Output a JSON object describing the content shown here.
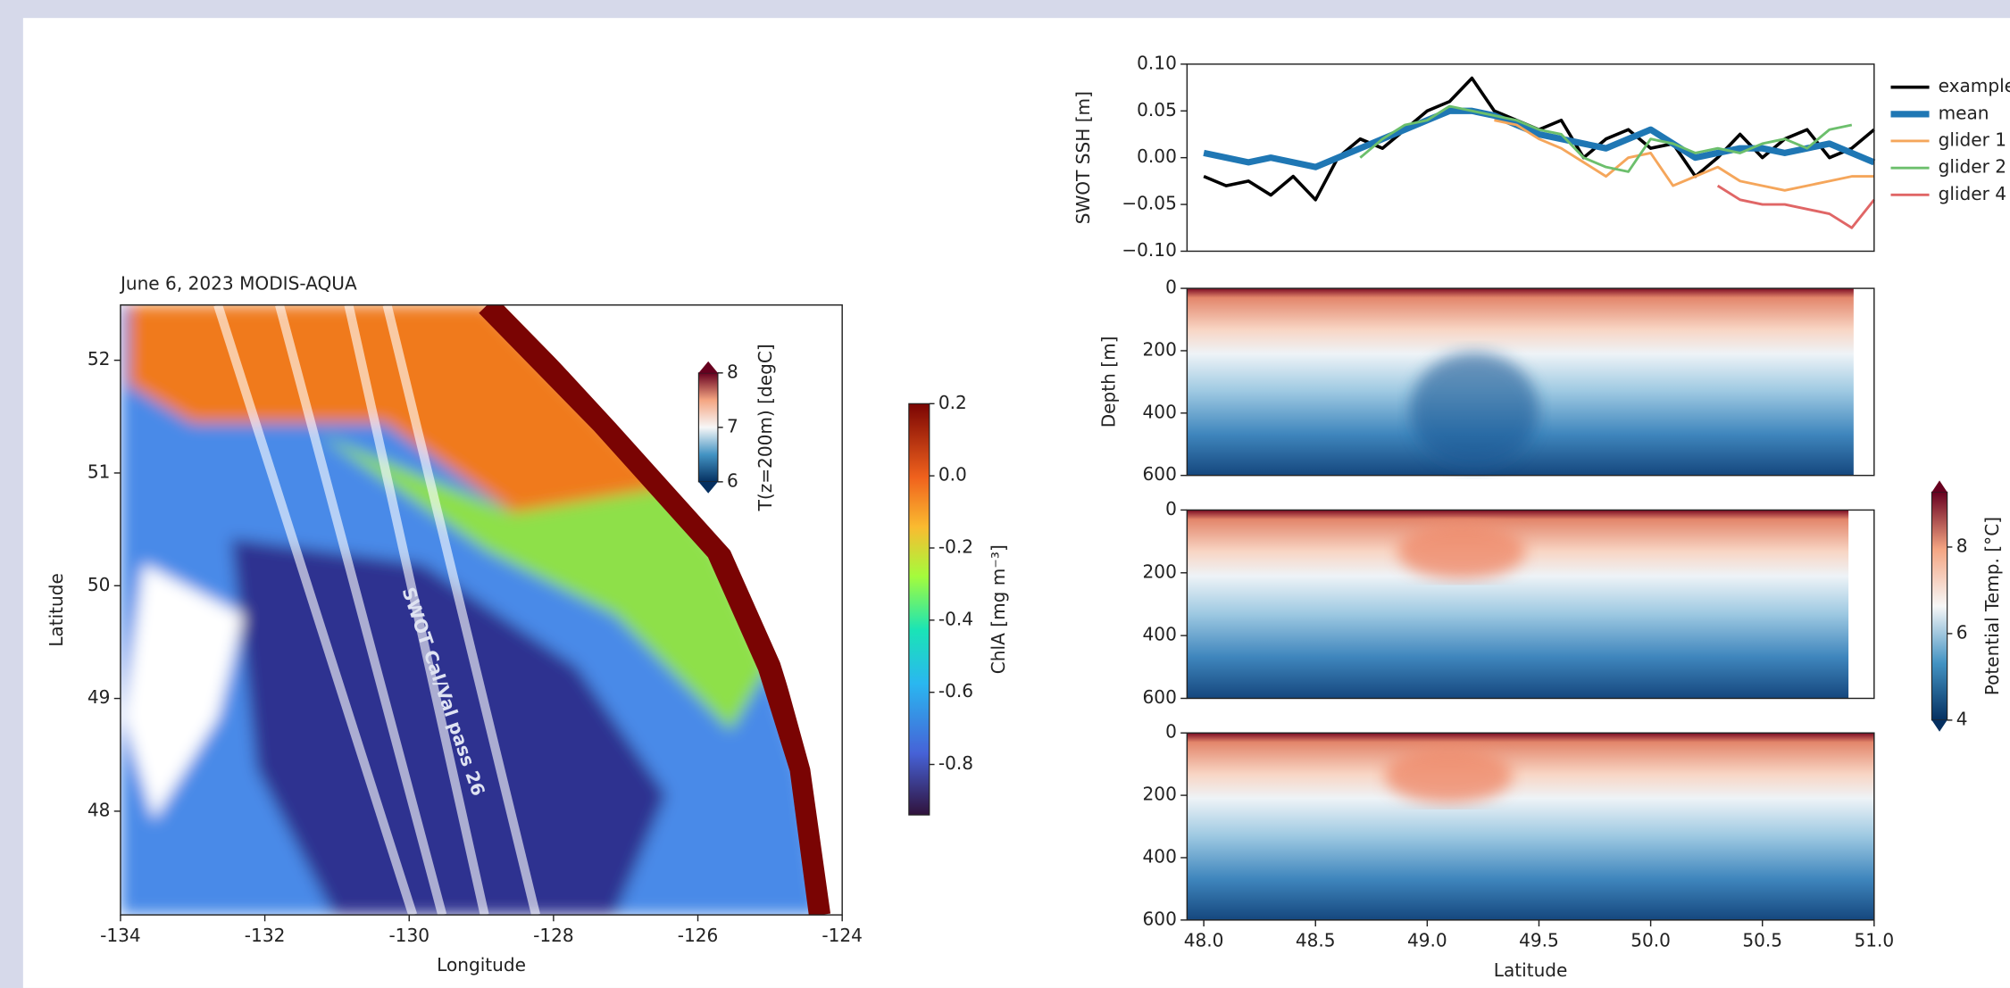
{
  "chart_data": [
    {
      "type": "map",
      "title": "June 6, 2023 MODIS-AQUA",
      "xlabel": "Longitude",
      "ylabel": "Latitude",
      "xlim": [
        -134,
        -124
      ],
      "xticks": [
        -134,
        -132,
        -130,
        -128,
        -126,
        -124
      ],
      "ylim": [
        47.08,
        52.49
      ],
      "yticks": [
        48,
        49,
        50,
        51,
        52
      ],
      "annotation": "SWOT Cal/Val pass 26",
      "colorbars": [
        {
          "label": "ChlA [mg m⁻³]",
          "lim": [
            -0.94,
            0.2
          ],
          "ticks": [
            0.2,
            {
              "value": 0,
              "label": "0.0"
            },
            -0.2,
            -0.4,
            -0.6,
            -0.8
          ]
        },
        {
          "label": "T(z=200m) [degC]",
          "lim": [
            6,
            8
          ],
          "ticks": [
            6,
            7,
            8
          ]
        }
      ]
    },
    {
      "type": "line",
      "ylabel": "SWOT SSH [m]",
      "ylim": [
        -0.1,
        0.1
      ],
      "yticks": [
        {
          "value": -0.1,
          "label": "−0.10"
        },
        {
          "value": -0.05,
          "label": "−0.05"
        },
        {
          "value": 0,
          "label": "0.00"
        },
        {
          "value": 0.05,
          "label": "0.05"
        },
        {
          "value": 0.1,
          "label": "0.10"
        }
      ],
      "xlim": [
        47.925,
        51.0
      ],
      "legend": "outside right",
      "x": [
        48.0,
        48.1,
        48.2,
        48.3,
        48.4,
        48.5,
        48.6,
        48.7,
        48.8,
        48.9,
        49.0,
        49.1,
        49.2,
        49.3,
        49.4,
        49.5,
        49.6,
        49.7,
        49.8,
        49.9,
        50.0,
        50.1,
        50.2,
        50.3,
        50.4,
        50.5,
        50.6,
        50.7,
        50.8,
        50.9,
        51.0
      ],
      "series": [
        {
          "name": "example",
          "color": "#000000",
          "width": 2.5,
          "values": [
            -0.02,
            -0.03,
            -0.025,
            -0.04,
            -0.02,
            -0.045,
            0.0,
            0.02,
            0.01,
            0.03,
            0.05,
            0.06,
            0.085,
            0.05,
            0.04,
            0.03,
            0.04,
            0.0,
            0.02,
            0.03,
            0.01,
            0.015,
            -0.02,
            0.0,
            0.025,
            0.0,
            0.02,
            0.03,
            0.0,
            0.01,
            0.03
          ]
        },
        {
          "name": "mean",
          "color": "#1f77b4",
          "width": 5,
          "values": [
            0.005,
            0.0,
            -0.005,
            0.0,
            -0.005,
            -0.01,
            0.0,
            0.01,
            0.02,
            0.03,
            0.04,
            0.05,
            0.05,
            0.045,
            0.035,
            0.025,
            0.02,
            0.015,
            0.01,
            0.02,
            0.03,
            0.015,
            0.0,
            0.005,
            0.01,
            0.01,
            0.005,
            0.01,
            0.015,
            0.005,
            -0.005
          ]
        },
        {
          "name": "glider 1",
          "color": "#f5a65b",
          "width": 2,
          "values": [
            null,
            null,
            null,
            null,
            null,
            null,
            null,
            null,
            null,
            null,
            null,
            null,
            null,
            0.04,
            0.035,
            0.02,
            0.01,
            -0.005,
            -0.02,
            0.0,
            0.005,
            -0.03,
            -0.02,
            -0.01,
            -0.025,
            -0.03,
            -0.035,
            -0.03,
            -0.025,
            -0.02,
            -0.02
          ]
        },
        {
          "name": "glider 2",
          "color": "#6cbf6c",
          "width": 2,
          "values": [
            null,
            null,
            null,
            null,
            null,
            null,
            null,
            0.0,
            0.02,
            0.035,
            0.04,
            0.055,
            0.05,
            0.045,
            0.04,
            0.03,
            0.025,
            0.0,
            -0.01,
            -0.015,
            0.02,
            0.015,
            0.005,
            0.01,
            0.005,
            0.015,
            0.02,
            0.01,
            0.03,
            0.035,
            null
          ]
        },
        {
          "name": "glider 4",
          "color": "#e06666",
          "width": 2,
          "values": [
            null,
            null,
            null,
            null,
            null,
            null,
            null,
            null,
            null,
            null,
            null,
            null,
            null,
            null,
            null,
            null,
            null,
            null,
            null,
            null,
            null,
            null,
            null,
            -0.03,
            -0.045,
            -0.05,
            -0.05,
            -0.055,
            -0.06,
            -0.075,
            -0.045
          ]
        }
      ]
    },
    {
      "type": "section",
      "ylabel": "Depth [m]",
      "ylim": [
        600,
        0
      ],
      "yticks": [
        0,
        200,
        400,
        600
      ],
      "xlim": [
        47.925,
        51.0
      ]
    },
    {
      "type": "section",
      "ylim": [
        600,
        0
      ],
      "yticks": [
        0,
        200,
        400,
        600
      ],
      "xlim": [
        47.925,
        51.0
      ]
    },
    {
      "type": "section",
      "xlabel": "Latitude",
      "ylim": [
        600,
        0
      ],
      "yticks": [
        0,
        200,
        400,
        600
      ],
      "xlim": [
        47.925,
        51.0
      ],
      "xticks": [
        {
          "value": 48,
          "label": "48.0"
        },
        48.5,
        {
          "value": 49,
          "label": "49.0"
        },
        49.5,
        {
          "value": 50,
          "label": "50.0"
        },
        50.5,
        {
          "value": 51,
          "label": "51.0"
        }
      ],
      "colorbar": {
        "label": "Potential Temp. [°C]",
        "lim": [
          4,
          9.27
        ],
        "ticks": [
          4,
          6,
          8
        ]
      }
    }
  ]
}
